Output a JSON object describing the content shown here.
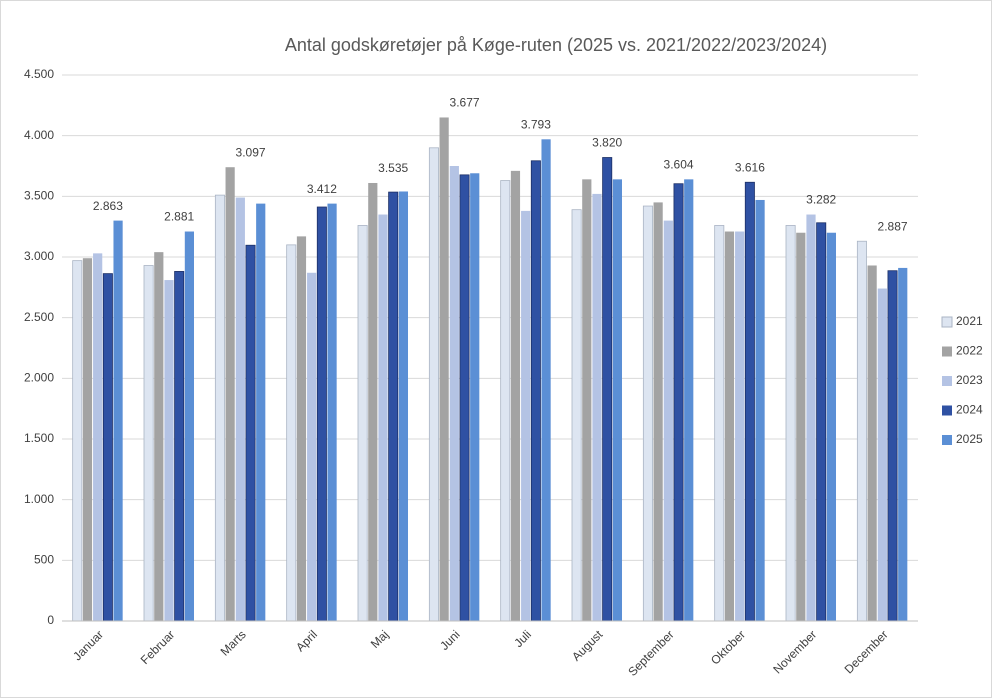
{
  "chart_data": {
    "type": "bar",
    "title": "Antal godskøretøjer på Køge-ruten (2025 vs. 2021/2022/2023/2024)",
    "categories": [
      "Januar",
      "Februar",
      "Marts",
      "April",
      "Maj",
      "Juni",
      "Juli",
      "August",
      "September",
      "Oktober",
      "November",
      "December"
    ],
    "series": [
      {
        "name": "2021",
        "color": "#dde5f1",
        "values": [
          2970,
          2930,
          3510,
          3100,
          3260,
          3900,
          3630,
          3390,
          3420,
          3260,
          3260,
          3130
        ]
      },
      {
        "name": "2022",
        "color": "#a3a3a3",
        "values": [
          2990,
          3040,
          3740,
          3170,
          3610,
          4150,
          3710,
          3640,
          3450,
          3210,
          3200,
          2930
        ]
      },
      {
        "name": "2023",
        "color": "#b4c3e4",
        "values": [
          3030,
          2810,
          3490,
          2870,
          3350,
          3750,
          3380,
          3520,
          3300,
          3210,
          3350,
          2740
        ]
      },
      {
        "name": "2024",
        "color": "#2f51a3",
        "values": [
          2863,
          2881,
          3097,
          3412,
          3535,
          3677,
          3793,
          3820,
          3604,
          3616,
          3282,
          2887
        ],
        "value_labels": [
          "2.863",
          "2.881",
          "3.097",
          "3.412",
          "3.535",
          "3.677",
          "3.793",
          "3.820",
          "3.604",
          "3.616",
          "3.282",
          "2.887"
        ]
      },
      {
        "name": "2025",
        "color": "#5b8fd5",
        "values": [
          3300,
          3210,
          3440,
          3440,
          3540,
          3690,
          3970,
          3640,
          3640,
          3470,
          3200,
          2910
        ]
      }
    ],
    "ylim": [
      0,
      4500
    ],
    "yticks": [
      0,
      500,
      {
        "value": 1000,
        "label": "1.000"
      },
      {
        "value": 1500,
        "label": "1.500"
      },
      {
        "value": 2000,
        "label": "2.000"
      },
      {
        "value": 2500,
        "label": "2.500"
      },
      {
        "value": 3000,
        "label": "3.000"
      },
      {
        "value": 3500,
        "label": "3.500"
      },
      {
        "value": 4000,
        "label": "4.000"
      },
      {
        "value": 4500,
        "label": "4.500"
      }
    ],
    "grid": true,
    "legend": "right"
  }
}
